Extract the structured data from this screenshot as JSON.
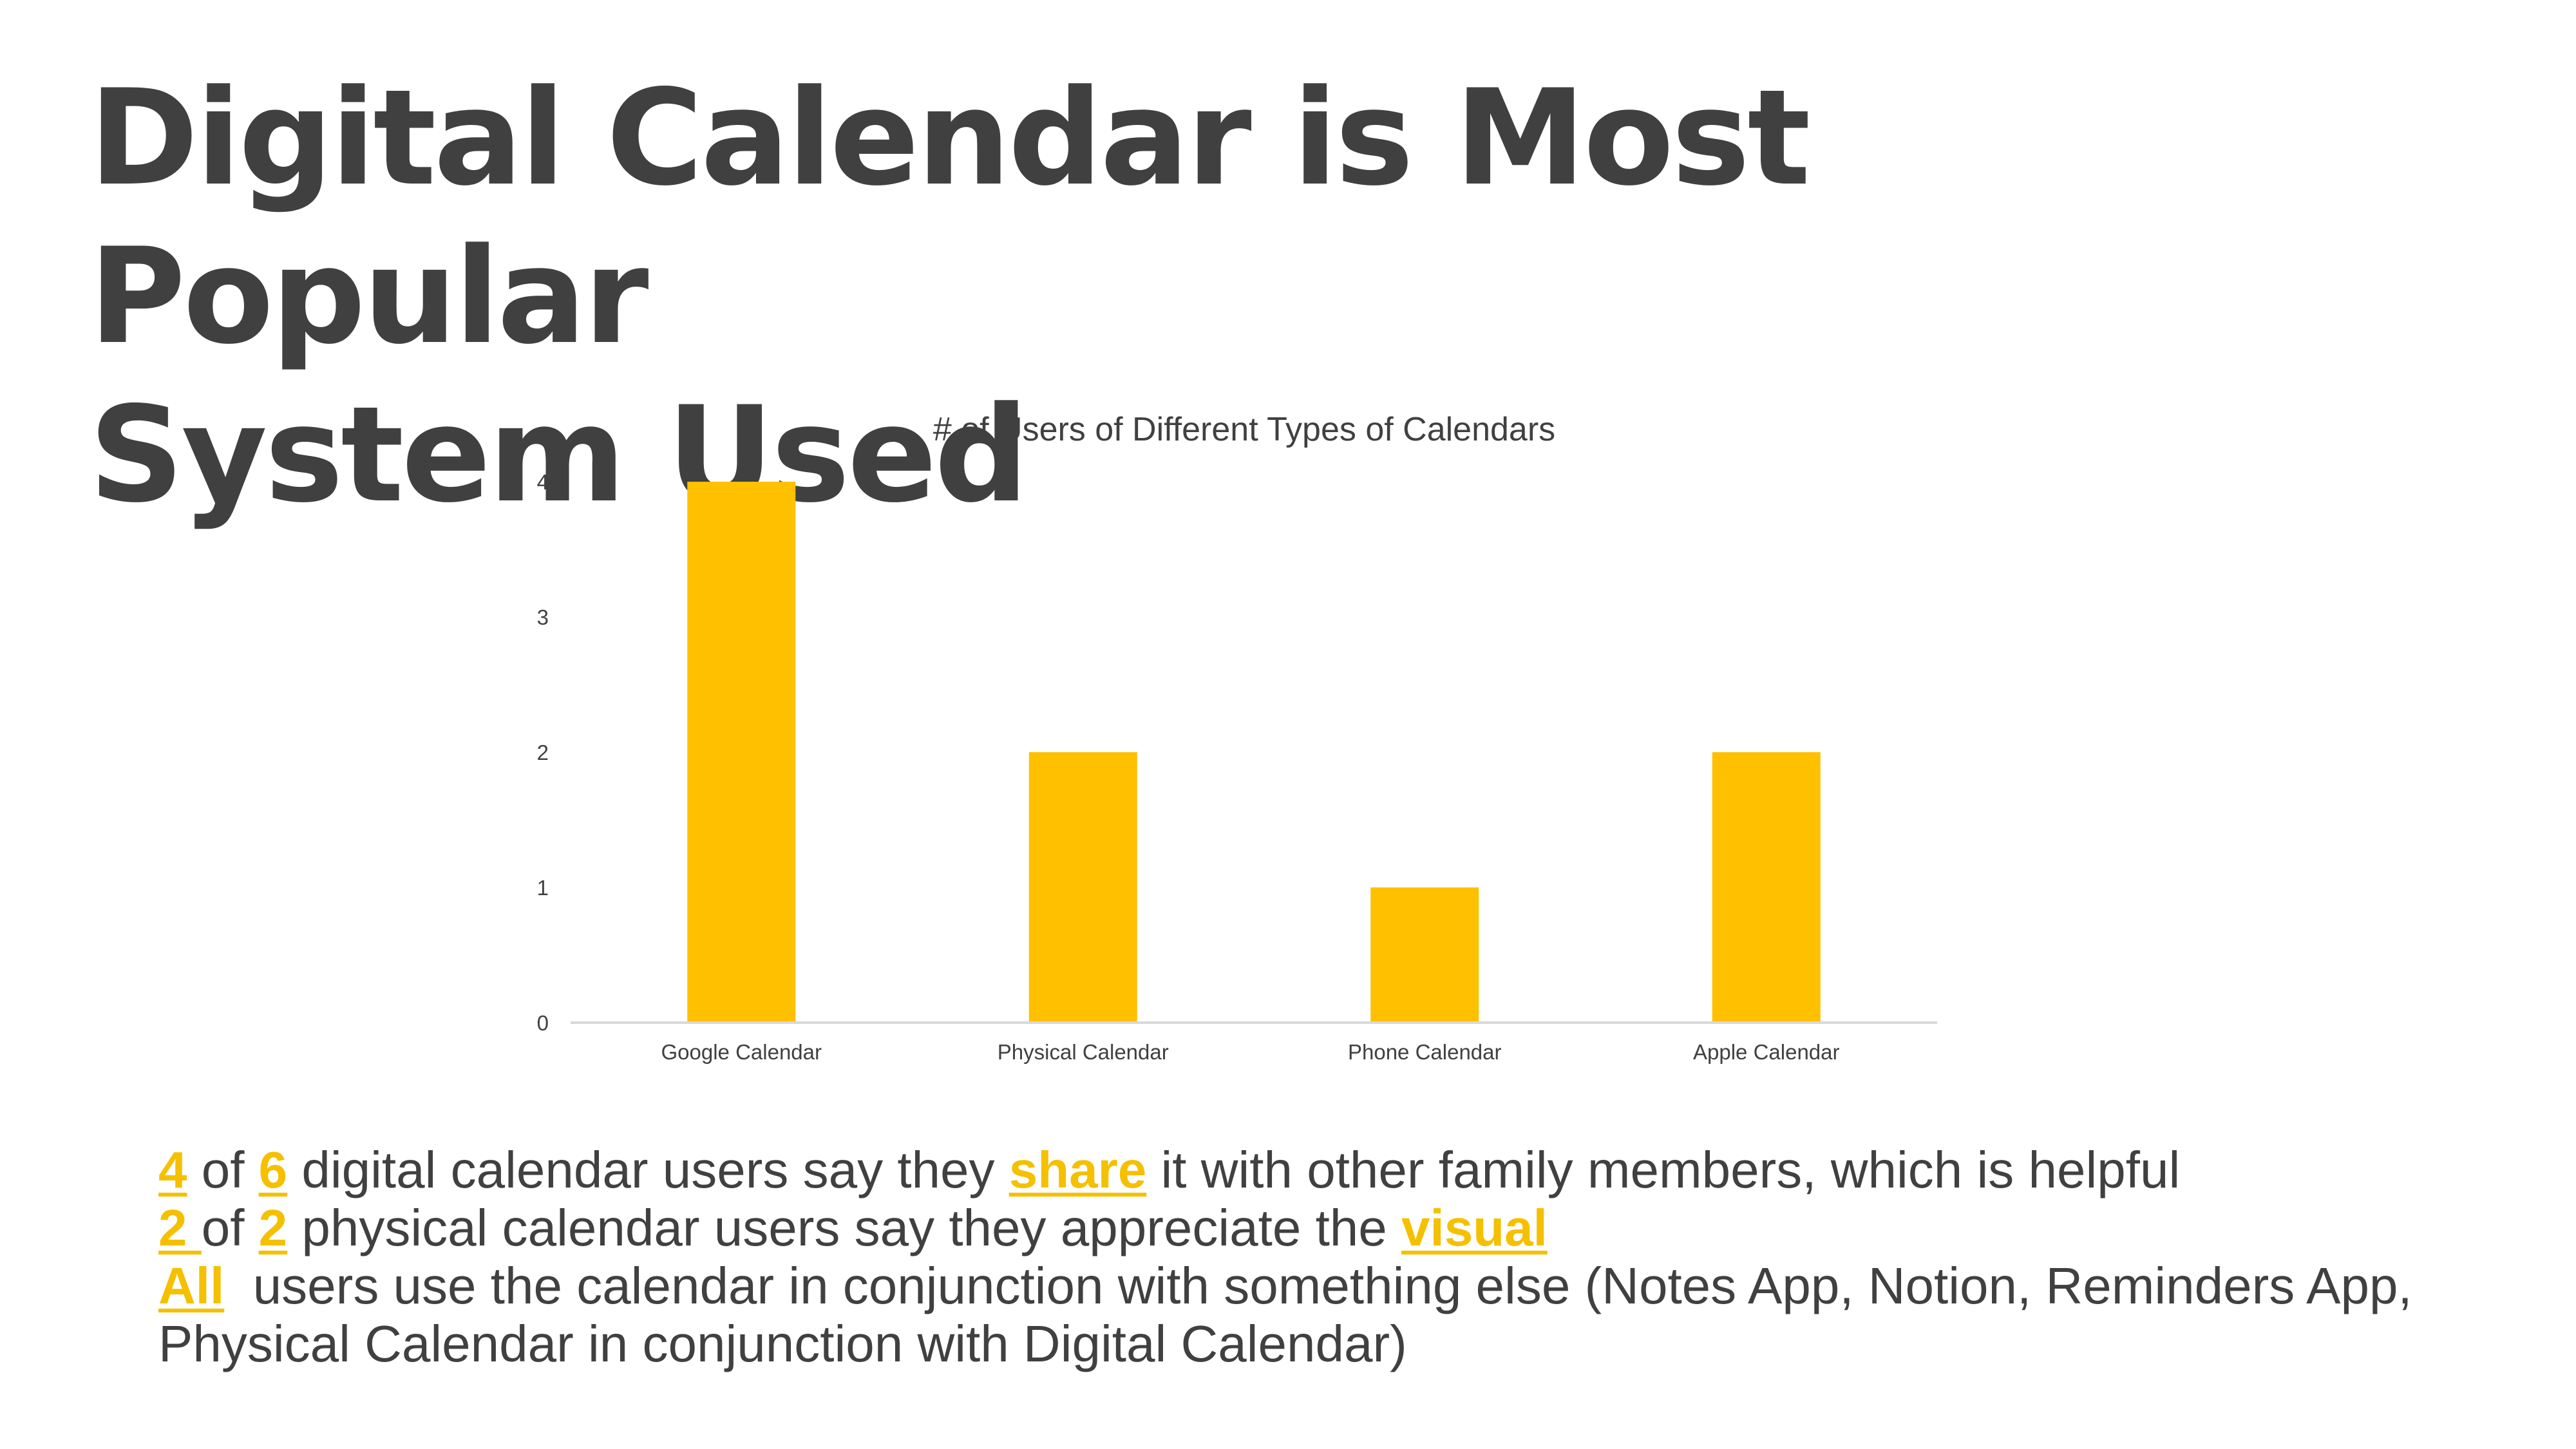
{
  "slide": {
    "title_lines": [
      "Digital Calendar is Most Popular",
      "System Used"
    ]
  },
  "colors": {
    "title": "#404040",
    "bar": "#ffc000",
    "highlight": "#f5c000",
    "axis": "#d9d9d9",
    "text": "#404040"
  },
  "chart_data": {
    "type": "bar",
    "title": "# of Users of Different Types of Calendars",
    "categories": [
      "Google Calendar",
      "Physical Calendar",
      "Phone Calendar",
      "Apple Calendar"
    ],
    "values": [
      4,
      2,
      1,
      2
    ],
    "xlabel": "",
    "ylabel": "",
    "ylim": [
      0,
      4
    ],
    "yticks": [
      "0",
      "1",
      "2",
      "3",
      "4"
    ],
    "grid": false,
    "legend": "none"
  },
  "bullets": [
    [
      {
        "text": "4",
        "hl": true
      },
      {
        "text": " of ",
        "hl": false
      },
      {
        "text": "6",
        "hl": true
      },
      {
        "text": " digital calendar users say they ",
        "hl": false
      },
      {
        "text": "share",
        "hl": true
      },
      {
        "text": " it with other family members, which is helpful",
        "hl": false
      }
    ],
    [
      {
        "text": "2 ",
        "hl": true
      },
      {
        "text": "of ",
        "hl": false
      },
      {
        "text": "2",
        "hl": true
      },
      {
        "text": " physical calendar users say they appreciate the ",
        "hl": false
      },
      {
        "text": "visual",
        "hl": true
      }
    ],
    [
      {
        "text": "All",
        "hl": true
      },
      {
        "text": "  users use the calendar in conjunction with something else (Notes App, Notion, Reminders App,",
        "hl": false
      }
    ],
    [
      {
        "text": "Physical Calendar in conjunction with Digital Calendar)",
        "hl": false
      }
    ]
  ]
}
